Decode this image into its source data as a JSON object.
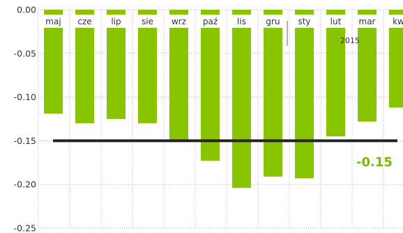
{
  "chart_data": {
    "type": "bar",
    "title": "",
    "xlabel": "",
    "ylabel": "",
    "categories": [
      "maj",
      "cze",
      "lip",
      "sie",
      "wrz",
      "paź",
      "lis",
      "gru",
      "sty",
      "lut",
      "mar",
      "kw"
    ],
    "values": [
      -0.119,
      -0.13,
      -0.125,
      -0.13,
      -0.149,
      -0.173,
      -0.204,
      -0.191,
      -0.193,
      -0.145,
      -0.128,
      -0.112
    ],
    "year_label": "2015",
    "year_starts_at": "sty",
    "ylim": [
      -0.25,
      0
    ],
    "yticks": [
      0,
      -0.05,
      -0.1,
      -0.15,
      -0.2,
      -0.25
    ],
    "ytick_labels": [
      "0.00",
      "-0.05",
      "-0.10",
      "-0.15",
      "-0.20",
      "-0.25"
    ],
    "reference_line": {
      "value": -0.15,
      "label": "-0.15"
    },
    "grid": true,
    "legend": "none",
    "colors": {
      "bar": "#88c400",
      "reference_line": "#222222",
      "reference_label": "#7ab800",
      "grid": "#bbbbbb"
    }
  }
}
